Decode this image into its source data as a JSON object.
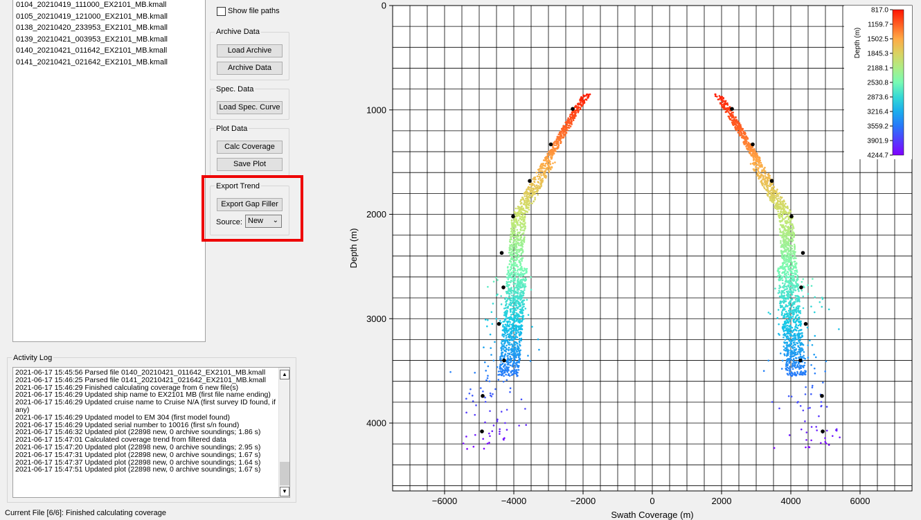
{
  "files": [
    "0104_20210419_111000_EX2101_MB.kmall",
    "0105_20210419_121000_EX2101_MB.kmall",
    "0138_20210420_233953_EX2101_MB.kmall",
    "0139_20210421_003953_EX2101_MB.kmall",
    "0140_20210421_011642_EX2101_MB.kmall",
    "0141_20210421_021642_EX2101_MB.kmall"
  ],
  "options": {
    "show_file_paths": "Show file paths",
    "show_file_paths_checked": false
  },
  "archive": {
    "title": "Archive Data",
    "load_label": "Load Archive",
    "archive_label": "Archive Data"
  },
  "spec": {
    "title": "Spec. Data",
    "load_label": "Load Spec. Curve"
  },
  "plot": {
    "title": "Plot Data",
    "calc_label": "Calc Coverage",
    "save_label": "Save Plot"
  },
  "export": {
    "title": "Export Trend",
    "gap_label": "Export Gap Filler",
    "source_label": "Source:",
    "source_value": "New",
    "highlight_color": "#ee0000"
  },
  "log": {
    "title": "Activity Log",
    "lines": [
      "2021-06-17 15:45:56 Parsed file 0140_20210421_011642_EX2101_MB.kmall",
      "2021-06-17 15:46:25 Parsed file 0141_20210421_021642_EX2101_MB.kmall",
      "2021-06-17 15:46:29 Finished calculating coverage from 6 new file(s)",
      "2021-06-17 15:46:29 Updated ship name to EX2101 MB (first file name ending)",
      "2021-06-17 15:46:29 Updated cruise name to Cruise N/A (first survey ID found, if any)",
      "2021-06-17 15:46:29 Updated model to EM 304 (first model found)",
      "2021-06-17 15:46:29 Updated serial number to 10016 (first s/n found)",
      "2021-06-17 15:46:32 Updated plot (22898 new, 0 archive soundings; 1.86 s)",
      "2021-06-17 15:47:01 Calculated coverage trend from filtered data",
      "2021-06-17 15:47:20 Updated plot (22898 new, 0 archive soundings; 2.95 s)",
      "2021-06-17 15:47:31 Updated plot (22898 new, 0 archive soundings; 1.67 s)",
      "2021-06-17 15:47:37 Updated plot (22898 new, 0 archive soundings; 1.64 s)",
      "2021-06-17 15:47:51 Updated plot (22898 new, 0 archive soundings; 1.67 s)"
    ]
  },
  "status": "Current File [6/6]: Finished calculating coverage",
  "chart_data": {
    "type": "scatter",
    "xlabel": "Swath Coverage (m)",
    "ylabel": "Depth (m)",
    "xlim": [
      -7500,
      7500
    ],
    "ylim": [
      4650,
      0
    ],
    "xticks": [
      -6000,
      -4000,
      -2000,
      0,
      2000,
      4000,
      6000
    ],
    "yticks": [
      0,
      1000,
      2000,
      3000,
      4000
    ],
    "grid": true,
    "colorbar": {
      "label": "Depth (m)",
      "ticks": [
        "817.0",
        "1159.7",
        "1502.5",
        "1845.3",
        "2188.1",
        "2530.8",
        "2873.6",
        "3216.4",
        "3559.2",
        "3901.9",
        "4244.7"
      ],
      "min": 817.0,
      "max": 4244.7,
      "colormap": "rainbow_r"
    },
    "trend_points": [
      [
        -2300,
        990
      ],
      [
        -2930,
        1330
      ],
      [
        -3540,
        1680
      ],
      [
        -4020,
        2020
      ],
      [
        -4350,
        2370
      ],
      [
        -4300,
        2700
      ],
      [
        -4430,
        3050
      ],
      [
        -4280,
        3400
      ],
      [
        -4900,
        3740
      ],
      [
        -4920,
        4080
      ],
      [
        2300,
        990
      ],
      [
        2900,
        1330
      ],
      [
        3450,
        1680
      ],
      [
        4020,
        2020
      ],
      [
        4350,
        2370
      ],
      [
        4300,
        2700
      ],
      [
        4430,
        3050
      ],
      [
        4280,
        3400
      ],
      [
        4900,
        3740
      ],
      [
        4920,
        4080
      ]
    ]
  }
}
